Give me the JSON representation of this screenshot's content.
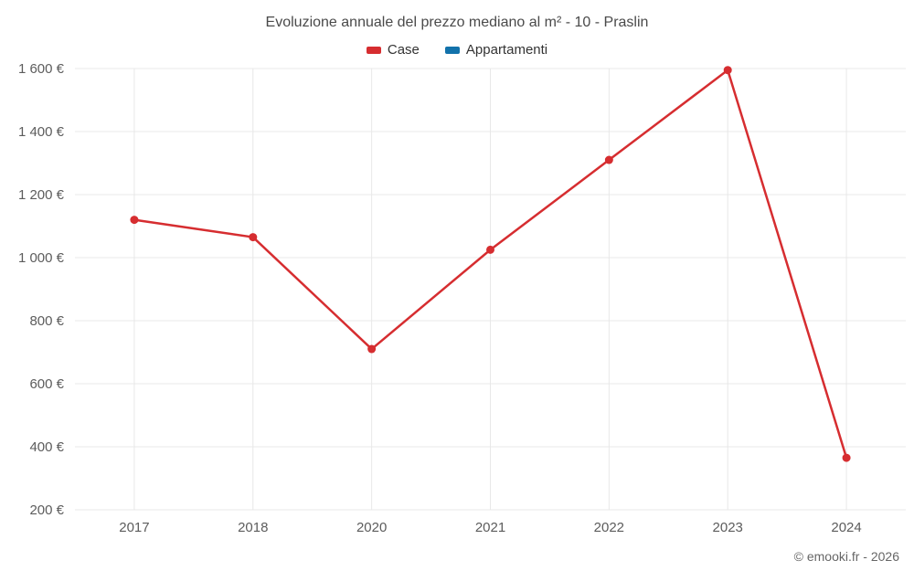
{
  "title": "Evoluzione annuale del prezzo mediano al m² - 10 - Praslin",
  "legend": [
    {
      "label": "Case",
      "color": "#d62d30"
    },
    {
      "label": "Appartamenti",
      "color": "#1272ab"
    }
  ],
  "footer": "© emooki.fr - 2026",
  "chart_data": {
    "type": "line",
    "title": "Evoluzione annuale del prezzo mediano al m² - 10 - Praslin",
    "categories": [
      "2017",
      "2018",
      "2020",
      "2021",
      "2022",
      "2023",
      "2024"
    ],
    "series": [
      {
        "name": "Case",
        "color": "#d62d30",
        "values": [
          1120,
          1065,
          710,
          1025,
          1310,
          1595,
          365
        ]
      },
      {
        "name": "Appartamenti",
        "color": "#1272ab",
        "values": []
      }
    ],
    "xlabel": "",
    "ylabel": "",
    "ylim": [
      200,
      1600
    ],
    "ytick_step": 200,
    "ytick_suffix": " €",
    "grid": true,
    "grid_color": "#e8e8e8",
    "legend_position": "top"
  }
}
